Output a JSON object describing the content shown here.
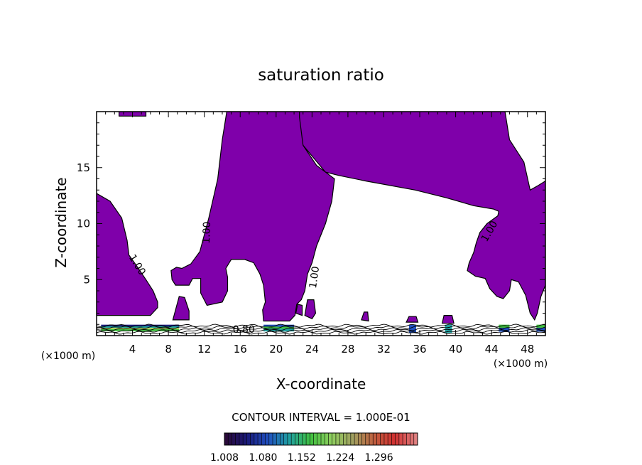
{
  "chart_data": {
    "type": "contour",
    "title": "saturation ratio",
    "xlabel": "X-coordinate",
    "ylabel": "Z-coordinate",
    "x_unit_label": "(×1000 m)",
    "y_unit_label": "(×1000 m)",
    "xlim": [
      0,
      50
    ],
    "ylim": [
      0,
      20
    ],
    "x_ticks": [
      4,
      8,
      12,
      16,
      20,
      24,
      28,
      32,
      36,
      40,
      44,
      48
    ],
    "y_ticks": [
      5,
      10,
      15
    ],
    "contour_labels": [
      {
        "text": "1.00",
        "x": 12.3,
        "y": 9.2,
        "angle": -88
      },
      {
        "text": "1.00",
        "x": 4.5,
        "y": 6.3,
        "angle": 58
      },
      {
        "text": "1.00",
        "x": 24.3,
        "y": 5.2,
        "angle": -82
      },
      {
        "text": "1.00",
        "x": 43.8,
        "y": 9.3,
        "angle": -60
      },
      {
        "text": "0.80",
        "x": 16.4,
        "y": 0.5,
        "angle": 0
      }
    ],
    "contour_interval_text": "CONTOUR INTERVAL = 1.000E-01",
    "colorbar": {
      "min": 1.008,
      "max": 1.368,
      "tick_labels": [
        "1.008",
        "1.080",
        "1.152",
        "1.224",
        "1.296"
      ],
      "colors": [
        "#2a0a3a",
        "#1a1a7a",
        "#2050c0",
        "#20a0a0",
        "#40c040",
        "#90d060",
        "#a0a060",
        "#c06040",
        "#d03030",
        "#e08080"
      ]
    },
    "fill_color": "#7f00aa",
    "supersaturated_regions": [
      {
        "name": "upper-left-top",
        "points": [
          [
            2.5,
            20
          ],
          [
            5.5,
            20
          ],
          [
            5.5,
            19.6
          ],
          [
            2.5,
            19.6
          ]
        ]
      },
      {
        "name": "left-lobe",
        "points": [
          [
            0,
            12.7
          ],
          [
            1.5,
            12.0
          ],
          [
            2.8,
            10.5
          ],
          [
            3.4,
            8.5
          ],
          [
            3.6,
            7.2
          ],
          [
            4.4,
            6.3
          ],
          [
            5.5,
            5.0
          ],
          [
            6.3,
            4.0
          ],
          [
            6.8,
            3.0
          ],
          [
            6.8,
            2.5
          ],
          [
            6.0,
            1.8
          ],
          [
            0,
            1.8
          ]
        ]
      },
      {
        "name": "central-plume",
        "points": [
          [
            14.5,
            20
          ],
          [
            22.4,
            20
          ],
          [
            22.4,
            19.3
          ],
          [
            23.0,
            17.0
          ],
          [
            25.5,
            14.6
          ],
          [
            27.0,
            14.3
          ],
          [
            30.0,
            13.8
          ],
          [
            35.5,
            13.0
          ],
          [
            39.0,
            12.3
          ],
          [
            42.0,
            11.6
          ],
          [
            44.2,
            11.3
          ],
          [
            44.8,
            11.1
          ],
          [
            44.7,
            10.7
          ],
          [
            43.5,
            10.0
          ],
          [
            42.7,
            9.2
          ],
          [
            42.3,
            8.3
          ],
          [
            42.0,
            7.4
          ],
          [
            41.5,
            6.5
          ],
          [
            41.3,
            5.8
          ],
          [
            42.2,
            5.3
          ],
          [
            43.3,
            5.1
          ],
          [
            43.8,
            4.2
          ],
          [
            44.6,
            3.5
          ],
          [
            45.3,
            3.3
          ],
          [
            46.0,
            4.0
          ],
          [
            46.2,
            5.0
          ],
          [
            47.0,
            4.8
          ],
          [
            47.8,
            3.6
          ],
          [
            48.3,
            2.0
          ],
          [
            48.8,
            1.4
          ],
          [
            49.1,
            2.0
          ],
          [
            49.5,
            3.5
          ],
          [
            50,
            4.5
          ],
          [
            50,
            13.8
          ],
          [
            49.2,
            13.4
          ],
          [
            48.3,
            13.0
          ],
          [
            47.6,
            15.5
          ],
          [
            46.0,
            17.5
          ],
          [
            45.5,
            20
          ],
          [
            44.0,
            20
          ],
          [
            37.0,
            20
          ],
          [
            33.0,
            20
          ],
          [
            30.0,
            20
          ],
          [
            26.0,
            20
          ],
          [
            23.0,
            20
          ],
          [
            22.4,
            20
          ],
          [
            22.4,
            15.5
          ],
          [
            21.8,
            15.0
          ],
          [
            20.0,
            14.7
          ],
          [
            16.0,
            14.7
          ],
          [
            14.5,
            14.0
          ]
        ]
      },
      {
        "name": "central-body",
        "points": [
          [
            14.5,
            20
          ],
          [
            22.6,
            20
          ],
          [
            22.6,
            19.5
          ],
          [
            23.0,
            17.0
          ],
          [
            24.5,
            15.2
          ],
          [
            26.5,
            14.0
          ],
          [
            26.2,
            12.0
          ],
          [
            25.5,
            10.0
          ],
          [
            24.5,
            8.0
          ],
          [
            24.0,
            6.5
          ],
          [
            23.5,
            5.5
          ],
          [
            23.2,
            4.0
          ],
          [
            22.8,
            3.2
          ],
          [
            22.3,
            2.8
          ],
          [
            22.1,
            1.8
          ],
          [
            21.5,
            1.3
          ],
          [
            18.6,
            1.3
          ],
          [
            18.5,
            2.3
          ],
          [
            18.8,
            3.0
          ],
          [
            18.6,
            4.5
          ],
          [
            18.2,
            5.5
          ],
          [
            17.5,
            6.5
          ],
          [
            16.5,
            6.8
          ],
          [
            15.0,
            6.8
          ],
          [
            14.4,
            6.0
          ],
          [
            14.6,
            5.2
          ],
          [
            14.6,
            4.0
          ],
          [
            14.0,
            3.0
          ],
          [
            12.3,
            2.7
          ],
          [
            11.6,
            3.8
          ],
          [
            11.6,
            5.1
          ],
          [
            10.7,
            5.1
          ],
          [
            10.3,
            4.5
          ],
          [
            8.8,
            4.5
          ],
          [
            8.4,
            5.0
          ],
          [
            8.3,
            5.8
          ],
          [
            8.9,
            6.1
          ],
          [
            9.5,
            6.0
          ],
          [
            10.5,
            6.4
          ],
          [
            11.5,
            7.5
          ],
          [
            12.5,
            10.5
          ],
          [
            13.5,
            14.0
          ],
          [
            14.0,
            17.5
          ]
        ]
      },
      {
        "name": "left-small-a",
        "points": [
          [
            8.5,
            1.4
          ],
          [
            9.2,
            3.5
          ],
          [
            9.8,
            3.4
          ],
          [
            10.3,
            2.2
          ],
          [
            10.3,
            1.4
          ]
        ]
      },
      {
        "name": "center-small-b",
        "points": [
          [
            23.2,
            1.8
          ],
          [
            23.5,
            3.2
          ],
          [
            24.2,
            3.2
          ],
          [
            24.4,
            2.0
          ],
          [
            24.0,
            1.5
          ]
        ]
      },
      {
        "name": "center-small-c",
        "points": [
          [
            22.2,
            2.0
          ],
          [
            22.4,
            2.8
          ],
          [
            22.9,
            2.7
          ],
          [
            22.9,
            1.8
          ]
        ]
      },
      {
        "name": "center-small-d",
        "points": [
          [
            29.5,
            1.4
          ],
          [
            29.8,
            2.1
          ],
          [
            30.2,
            2.1
          ],
          [
            30.3,
            1.3
          ]
        ]
      },
      {
        "name": "center-small-e",
        "points": [
          [
            34.5,
            1.2
          ],
          [
            34.8,
            1.7
          ],
          [
            35.6,
            1.7
          ],
          [
            35.8,
            1.2
          ]
        ]
      },
      {
        "name": "center-small-f",
        "points": [
          [
            38.5,
            1.1
          ],
          [
            38.7,
            1.8
          ],
          [
            39.6,
            1.8
          ],
          [
            39.8,
            1.1
          ]
        ]
      }
    ],
    "near_surface_layer": {
      "z_bottom": 0.2,
      "z_top": 1.1
    }
  },
  "page": {
    "contour_interval": "CONTOUR INTERVAL = 1.000E-01"
  }
}
